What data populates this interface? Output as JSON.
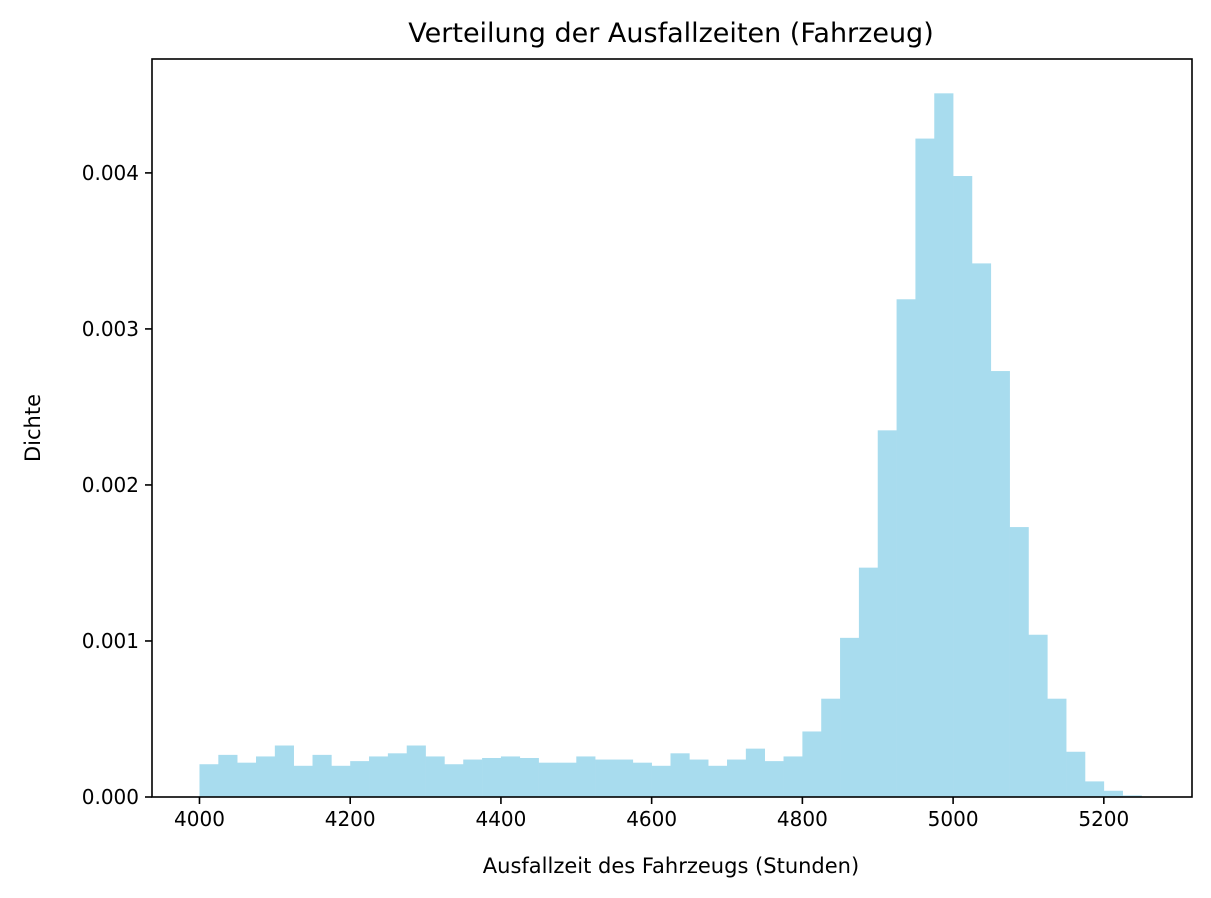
{
  "chart_data": {
    "type": "bar",
    "title": "Verteilung der Ausfallzeiten (Fahrzeug)",
    "xlabel": "Ausfallzeit des Fahrzeugs (Stunden)",
    "ylabel": "Dichte",
    "xlim": [
      3937,
      5317
    ],
    "ylim": [
      0,
      0.00473
    ],
    "xticks": [
      "4000",
      "4200",
      "4400",
      "4600",
      "4800",
      "5000",
      "5200"
    ],
    "yticks": [
      "0.000",
      "0.001",
      "0.002",
      "0.003",
      "0.004"
    ],
    "bin_start": 4000,
    "bin_width": 25,
    "color": "#a8dcee",
    "grid": false,
    "values": [
      0.00021,
      0.00027,
      0.00022,
      0.00026,
      0.00033,
      0.0002,
      0.00027,
      0.0002,
      0.00023,
      0.00026,
      0.00028,
      0.00033,
      0.00026,
      0.00021,
      0.00024,
      0.00025,
      0.00026,
      0.00025,
      0.00022,
      0.00022,
      0.00026,
      0.00024,
      0.00024,
      0.00022,
      0.0002,
      0.00028,
      0.00024,
      0.0002,
      0.00024,
      0.00031,
      0.00023,
      0.00026,
      0.00042,
      0.00063,
      0.00102,
      0.00147,
      0.00235,
      0.00319,
      0.00422,
      0.00451,
      0.00398,
      0.00342,
      0.00273,
      0.00173,
      0.00104,
      0.00063,
      0.00029,
      0.0001,
      4e-05,
      1e-05
    ]
  }
}
